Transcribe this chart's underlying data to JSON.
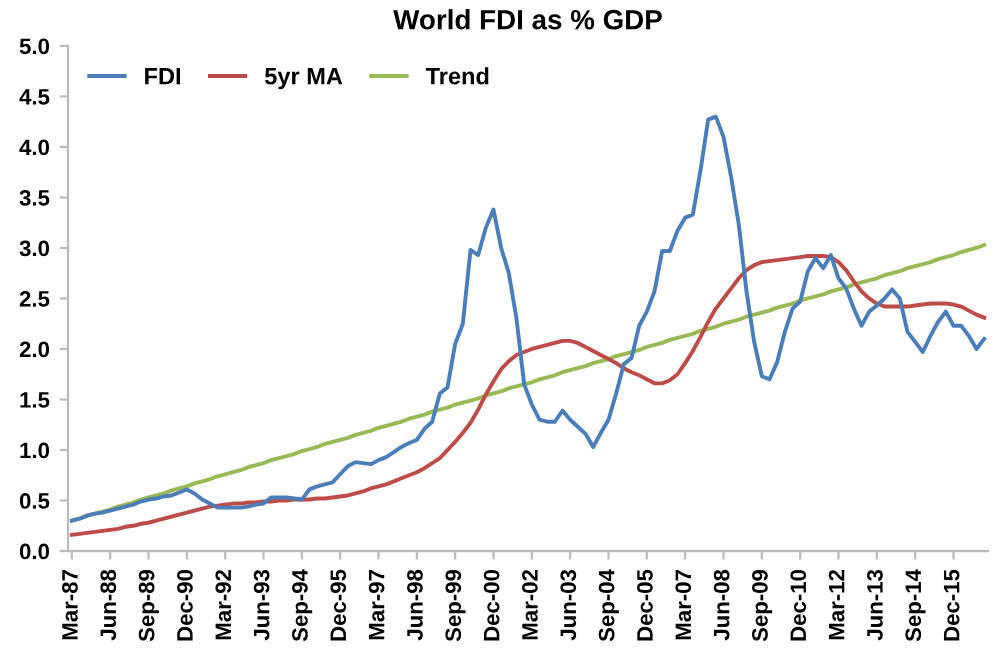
{
  "chart_data": {
    "type": "line",
    "title": "World FDI as % GDP",
    "categories": [
      "Mar-87",
      null,
      null,
      null,
      null,
      "Jun-88",
      null,
      null,
      null,
      null,
      "Sep-89",
      null,
      null,
      null,
      null,
      "Dec-90",
      null,
      null,
      null,
      null,
      "Mar-92",
      null,
      null,
      null,
      null,
      "Jun-93",
      null,
      null,
      null,
      null,
      "Sep-94",
      null,
      null,
      null,
      null,
      "Dec-95",
      null,
      null,
      null,
      null,
      "Mar-97",
      null,
      null,
      null,
      null,
      "Jun-98",
      null,
      null,
      null,
      null,
      "Sep-99",
      null,
      null,
      null,
      null,
      "Dec-00",
      null,
      null,
      null,
      null,
      "Mar-02",
      null,
      null,
      null,
      null,
      "Jun-03",
      null,
      null,
      null,
      null,
      "Sep-04",
      null,
      null,
      null,
      null,
      "Dec-05",
      null,
      null,
      null,
      null,
      "Mar-07",
      null,
      null,
      null,
      null,
      "Jun-08",
      null,
      null,
      null,
      null,
      "Sep-09",
      null,
      null,
      null,
      null,
      "Dec-10",
      null,
      null,
      null,
      null,
      "Mar-12",
      null,
      null,
      null,
      null,
      "Jun-13",
      null,
      null,
      null,
      null,
      "Sep-14",
      null,
      null,
      null,
      null,
      "Dec-15",
      null,
      null,
      null,
      null
    ],
    "series": [
      {
        "name": "FDI",
        "color": "#4a7ebb",
        "values": [
          0.3,
          0.32,
          0.35,
          0.37,
          0.38,
          0.4,
          0.42,
          0.44,
          0.46,
          0.49,
          0.51,
          0.52,
          0.54,
          0.55,
          0.58,
          0.61,
          0.57,
          0.51,
          0.47,
          0.43,
          0.43,
          0.43,
          0.43,
          0.44,
          0.46,
          0.47,
          0.53,
          0.53,
          0.53,
          0.52,
          0.51,
          0.61,
          0.64,
          0.66,
          0.68,
          0.76,
          0.84,
          0.88,
          0.87,
          0.86,
          0.9,
          0.93,
          0.98,
          1.03,
          1.07,
          1.1,
          1.21,
          1.28,
          1.56,
          1.62,
          2.05,
          2.25,
          2.98,
          2.93,
          3.2,
          3.38,
          3.0,
          2.75,
          2.3,
          1.65,
          1.45,
          1.3,
          1.28,
          1.28,
          1.39,
          1.3,
          1.23,
          1.16,
          1.03,
          1.17,
          1.3,
          1.56,
          1.85,
          1.91,
          2.23,
          2.37,
          2.57,
          2.97,
          2.97,
          3.17,
          3.3,
          3.33,
          3.77,
          4.27,
          4.3,
          4.1,
          3.7,
          3.23,
          2.57,
          2.07,
          1.73,
          1.7,
          1.87,
          2.17,
          2.4,
          2.47,
          2.77,
          2.9,
          2.8,
          2.93,
          2.7,
          2.6,
          2.4,
          2.23,
          2.37,
          2.43,
          2.5,
          2.59,
          2.5,
          2.17,
          2.07,
          1.97,
          2.13,
          2.27,
          2.37,
          2.23,
          2.23,
          2.13,
          2.0,
          2.1
        ]
      },
      {
        "name": "5yr MA",
        "color": "#be4b48",
        "values": [
          0.16,
          0.17,
          0.18,
          0.19,
          0.2,
          0.21,
          0.22,
          0.24,
          0.25,
          0.27,
          0.28,
          0.3,
          0.32,
          0.34,
          0.36,
          0.38,
          0.4,
          0.42,
          0.44,
          0.45,
          0.46,
          0.47,
          0.47,
          0.48,
          0.48,
          0.49,
          0.49,
          0.5,
          0.5,
          0.51,
          0.51,
          0.51,
          0.52,
          0.52,
          0.53,
          0.54,
          0.55,
          0.57,
          0.59,
          0.62,
          0.64,
          0.66,
          0.69,
          0.72,
          0.75,
          0.78,
          0.82,
          0.87,
          0.92,
          1.0,
          1.08,
          1.17,
          1.27,
          1.4,
          1.55,
          1.68,
          1.8,
          1.88,
          1.94,
          1.97,
          2.0,
          2.02,
          2.04,
          2.06,
          2.08,
          2.08,
          2.06,
          2.02,
          1.98,
          1.94,
          1.9,
          1.86,
          1.81,
          1.77,
          1.74,
          1.7,
          1.66,
          1.66,
          1.69,
          1.75,
          1.86,
          1.98,
          2.12,
          2.27,
          2.4,
          2.5,
          2.6,
          2.7,
          2.78,
          2.83,
          2.86,
          2.87,
          2.88,
          2.89,
          2.9,
          2.91,
          2.92,
          2.92,
          2.92,
          2.91,
          2.86,
          2.78,
          2.67,
          2.57,
          2.5,
          2.45,
          2.42,
          2.42,
          2.42,
          2.42,
          2.43,
          2.44,
          2.45,
          2.45,
          2.45,
          2.44,
          2.42,
          2.38,
          2.34,
          2.31
        ]
      },
      {
        "name": "Trend",
        "color": "#98b954",
        "values": [
          0.3,
          0.32,
          0.35,
          0.37,
          0.39,
          0.41,
          0.44,
          0.46,
          0.48,
          0.51,
          0.53,
          0.55,
          0.57,
          0.6,
          0.62,
          0.64,
          0.67,
          0.69,
          0.71,
          0.74,
          0.76,
          0.78,
          0.8,
          0.83,
          0.85,
          0.87,
          0.9,
          0.92,
          0.94,
          0.96,
          0.99,
          1.01,
          1.03,
          1.06,
          1.08,
          1.1,
          1.12,
          1.15,
          1.17,
          1.19,
          1.22,
          1.24,
          1.26,
          1.28,
          1.31,
          1.33,
          1.35,
          1.38,
          1.4,
          1.42,
          1.45,
          1.47,
          1.49,
          1.51,
          1.54,
          1.56,
          1.58,
          1.61,
          1.63,
          1.65,
          1.67,
          1.7,
          1.72,
          1.74,
          1.77,
          1.79,
          1.81,
          1.83,
          1.86,
          1.88,
          1.9,
          1.93,
          1.95,
          1.97,
          1.99,
          2.02,
          2.04,
          2.06,
          2.09,
          2.11,
          2.13,
          2.15,
          2.18,
          2.2,
          2.22,
          2.25,
          2.27,
          2.29,
          2.32,
          2.34,
          2.36,
          2.38,
          2.41,
          2.43,
          2.45,
          2.48,
          2.5,
          2.52,
          2.54,
          2.57,
          2.59,
          2.61,
          2.64,
          2.66,
          2.68,
          2.7,
          2.73,
          2.75,
          2.77,
          2.8,
          2.82,
          2.84,
          2.86,
          2.89,
          2.91,
          2.93,
          2.96,
          2.98,
          3.0,
          3.03
        ]
      }
    ],
    "ylim": [
      0,
      5
    ],
    "yticks": [
      {
        "value": 0,
        "label": "0.0"
      },
      {
        "value": 0.5,
        "label": "0.5"
      },
      {
        "value": 1,
        "label": "1.0"
      },
      {
        "value": 1.5,
        "label": "1.5"
      },
      {
        "value": 2,
        "label": "2.0"
      },
      {
        "value": 2.5,
        "label": "2.5"
      },
      {
        "value": 3,
        "label": "3.0"
      },
      {
        "value": 3.5,
        "label": "3.5"
      },
      {
        "value": 4,
        "label": "4.0"
      },
      {
        "value": 4.5,
        "label": "4.5"
      },
      {
        "value": 5,
        "label": "5.0"
      }
    ],
    "legend": "top left",
    "grid": false,
    "marker": "none",
    "line_style": "solid"
  }
}
